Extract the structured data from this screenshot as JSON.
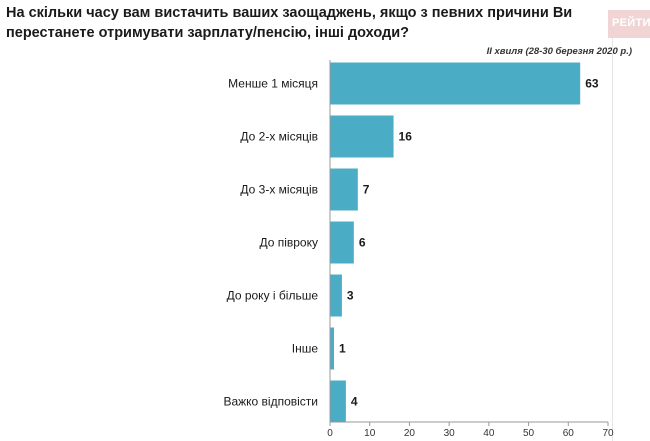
{
  "header": {
    "title": "На скільки часу вам вистачить ваших заощаджень, якщо з певних причини Ви перестанете отримувати зарплату/пенсію, інші доходи?",
    "subtitle": "ІІ хвиля (28-30 березня 2020 р.)",
    "brand": "РЕЙТИНГ"
  },
  "chart_data": {
    "type": "bar",
    "orientation": "horizontal",
    "categories": [
      "Менше 1 місяця",
      "До 2-х місяців",
      "До 3-х місяців",
      "До півроку",
      "До року і більше",
      "Інше",
      "Важко відповісти"
    ],
    "values": [
      63,
      16,
      7,
      6,
      3,
      1,
      4
    ],
    "xlim": [
      0,
      70
    ],
    "xticks": [
      0,
      10,
      20,
      30,
      40,
      50,
      60,
      70
    ],
    "color": "#4bacc6",
    "grid": false
  }
}
